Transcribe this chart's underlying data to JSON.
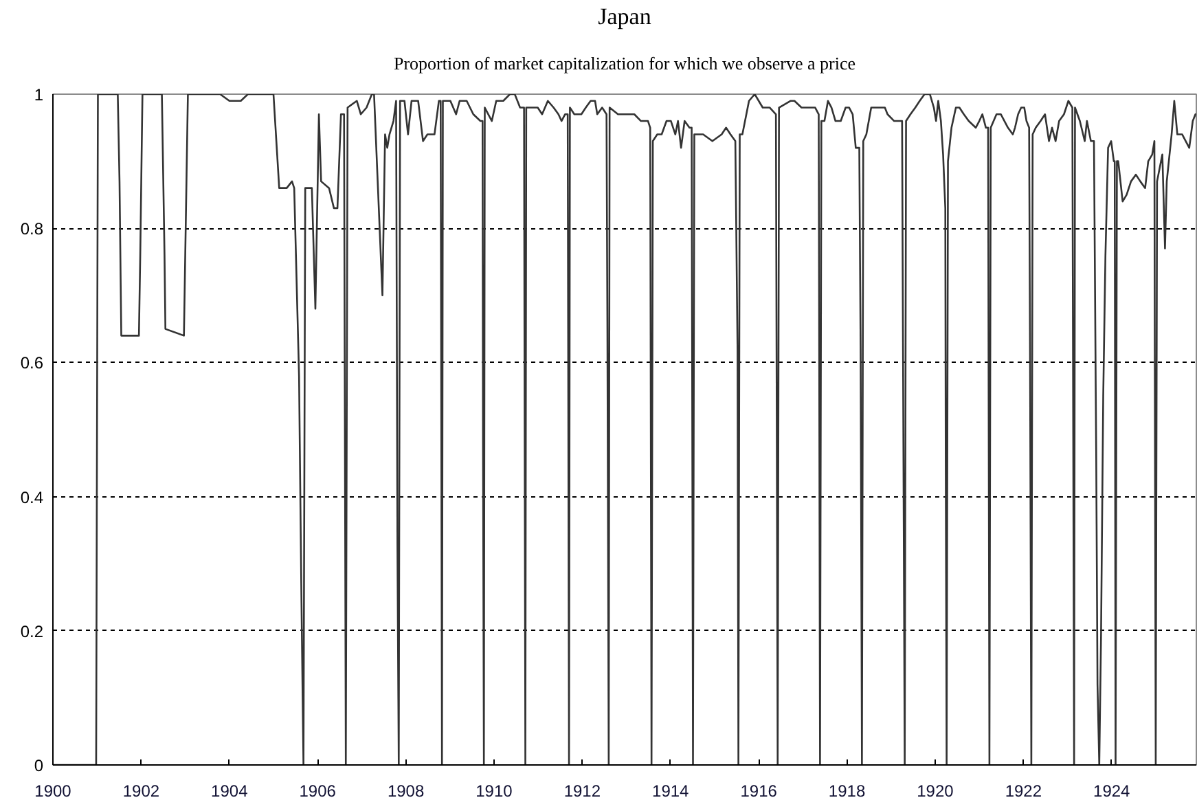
{
  "chart_data": {
    "type": "line",
    "title": "Japan",
    "subtitle": "Proportion of market capitalization for which we observe a price",
    "x": [
      1900.0,
      1900.98,
      1901.0,
      1901.02,
      1901.47,
      1901.51,
      1901.55,
      1901.95,
      1901.98,
      1902.03,
      1902.47,
      1902.53,
      1902.55,
      1902.97,
      1903.0,
      1903.06,
      1903.79,
      1904.0,
      1904.26,
      1904.42,
      1905.0,
      1905.13,
      1905.3,
      1905.42,
      1905.47,
      1905.58,
      1905.63,
      1905.68,
      1905.72,
      1905.87,
      1905.95,
      1906.03,
      1906.08,
      1906.26,
      1906.37,
      1906.45,
      1906.53,
      1906.6,
      1906.64,
      1906.68,
      1906.89,
      1906.98,
      1907.11,
      1907.23,
      1907.28,
      1907.47,
      1907.53,
      1907.58,
      1907.63,
      1907.72,
      1907.78,
      1907.81,
      1907.84,
      1907.87,
      1907.97,
      1908.05,
      1908.13,
      1908.28,
      1908.39,
      1908.49,
      1908.65,
      1908.75,
      1908.79,
      1908.8,
      1908.82,
      1908.84,
      1909.01,
      1909.14,
      1909.22,
      1909.38,
      1909.53,
      1909.69,
      1909.74,
      1909.75,
      1909.77,
      1909.79,
      1909.95,
      1910.05,
      1910.21,
      1910.36,
      1910.47,
      1910.59,
      1910.68,
      1910.69,
      1910.71,
      1910.73,
      1910.89,
      1910.99,
      1911.09,
      1911.22,
      1911.35,
      1911.46,
      1911.53,
      1911.61,
      1911.67,
      1911.68,
      1911.7,
      1911.72,
      1911.82,
      1911.98,
      1912.08,
      1912.19,
      1912.29,
      1912.34,
      1912.45,
      1912.55,
      1912.57,
      1912.6,
      1912.62,
      1912.81,
      1912.97,
      1913.07,
      1913.18,
      1913.33,
      1913.49,
      1913.54,
      1913.55,
      1913.57,
      1913.6,
      1913.7,
      1913.8,
      1913.91,
      1914.01,
      1914.11,
      1914.17,
      1914.24,
      1914.32,
      1914.43,
      1914.48,
      1914.49,
      1914.51,
      1914.54,
      1914.74,
      1914.95,
      1915.16,
      1915.26,
      1915.36,
      1915.47,
      1915.52,
      1915.54,
      1915.57,
      1915.63,
      1915.78,
      1915.91,
      1916.09,
      1916.25,
      1916.39,
      1916.41,
      1916.43,
      1916.46,
      1916.72,
      1916.81,
      1916.97,
      1917.13,
      1917.28,
      1917.36,
      1917.37,
      1917.39,
      1917.42,
      1917.49,
      1917.57,
      1917.65,
      1917.74,
      1917.86,
      1917.97,
      1918.05,
      1918.13,
      1918.2,
      1918.28,
      1918.31,
      1918.34,
      1918.37,
      1918.44,
      1918.55,
      1918.65,
      1918.76,
      1918.86,
      1918.92,
      1919.07,
      1919.18,
      1919.25,
      1919.28,
      1919.31,
      1919.34,
      1919.44,
      1919.55,
      1919.65,
      1919.76,
      1919.88,
      1919.97,
      1920.02,
      1920.07,
      1920.13,
      1920.18,
      1920.23,
      1920.24,
      1920.26,
      1920.29,
      1920.37,
      1920.47,
      1920.55,
      1920.65,
      1920.76,
      1920.92,
      1921.0,
      1921.07,
      1921.15,
      1921.2,
      1921.21,
      1921.23,
      1921.26,
      1921.39,
      1921.49,
      1921.57,
      1921.65,
      1921.76,
      1921.81,
      1921.88,
      1921.95,
      1922.02,
      1922.07,
      1922.13,
      1922.15,
      1922.18,
      1922.21,
      1922.28,
      1922.39,
      1922.49,
      1922.58,
      1922.65,
      1922.73,
      1922.81,
      1922.92,
      1923.02,
      1923.11,
      1923.13,
      1923.15,
      1923.17,
      1923.28,
      1923.39,
      1923.44,
      1923.53,
      1923.6,
      1923.65,
      1923.68,
      1923.72,
      1923.76,
      1923.81,
      1923.86,
      1923.92,
      1923.99,
      1924.05,
      1924.07,
      1924.09,
      1924.12,
      1924.15,
      1924.25,
      1924.34,
      1924.44,
      1924.55,
      1924.65,
      1924.76,
      1924.83,
      1924.92,
      1924.97,
      1924.98,
      1925.0,
      1925.03,
      1925.15,
      1925.21,
      1925.25,
      1925.36,
      1925.42,
      1925.49,
      1925.6,
      1925.76,
      1925.84,
      1925.9
    ],
    "series": [
      {
        "color": "#333333",
        "values": [
          0,
          0,
          0.5,
          1,
          1,
          0.87,
          0.64,
          0.64,
          0.76,
          1,
          1,
          0.76,
          0.65,
          0.64,
          0.76,
          1,
          1,
          0.99,
          0.99,
          1,
          1,
          0.86,
          0.86,
          0.87,
          0.86,
          0.58,
          0.27,
          0,
          0.86,
          0.86,
          0.68,
          0.97,
          0.87,
          0.86,
          0.83,
          0.83,
          0.97,
          0.97,
          0,
          0.98,
          0.99,
          0.97,
          0.98,
          1,
          1,
          0.7,
          0.94,
          0.92,
          0.94,
          0.96,
          0.99,
          0.33,
          0,
          0.99,
          0.99,
          0.94,
          0.99,
          0.99,
          0.93,
          0.94,
          0.94,
          0.99,
          0.99,
          0.66,
          0,
          0.99,
          0.99,
          0.97,
          0.99,
          0.99,
          0.97,
          0.96,
          0.96,
          0.48,
          0,
          0.98,
          0.96,
          0.99,
          0.99,
          1,
          1,
          0.98,
          0.98,
          0.65,
          0,
          0.98,
          0.98,
          0.98,
          0.97,
          0.99,
          0.98,
          0.97,
          0.96,
          0.97,
          0.97,
          0.65,
          0,
          0.98,
          0.97,
          0.97,
          0.98,
          0.99,
          0.99,
          0.97,
          0.98,
          0.97,
          0.65,
          0,
          0.98,
          0.97,
          0.97,
          0.97,
          0.97,
          0.96,
          0.96,
          0.95,
          0.64,
          0,
          0.93,
          0.94,
          0.94,
          0.96,
          0.96,
          0.94,
          0.96,
          0.92,
          0.96,
          0.95,
          0.95,
          0.63,
          0,
          0.94,
          0.94,
          0.93,
          0.94,
          0.95,
          0.94,
          0.93,
          0.62,
          0,
          0.94,
          0.94,
          0.99,
          1,
          0.98,
          0.98,
          0.97,
          0.49,
          0,
          0.98,
          0.99,
          0.99,
          0.98,
          0.98,
          0.98,
          0.97,
          0.66,
          0,
          0.96,
          0.96,
          0.99,
          0.98,
          0.96,
          0.96,
          0.98,
          0.98,
          0.97,
          0.92,
          0.92,
          0.62,
          0,
          0.93,
          0.94,
          0.98,
          0.98,
          0.98,
          0.98,
          0.97,
          0.96,
          0.96,
          0.96,
          0.48,
          0,
          0.96,
          0.97,
          0.98,
          0.99,
          1,
          1,
          0.98,
          0.96,
          0.99,
          0.96,
          0.91,
          0.83,
          0.45,
          0,
          0.9,
          0.95,
          0.98,
          0.98,
          0.97,
          0.96,
          0.95,
          0.96,
          0.97,
          0.95,
          0.95,
          0.63,
          0,
          0.95,
          0.97,
          0.97,
          0.96,
          0.95,
          0.94,
          0.95,
          0.97,
          0.98,
          0.98,
          0.96,
          0.95,
          0.63,
          0,
          0.94,
          0.95,
          0.96,
          0.97,
          0.93,
          0.95,
          0.93,
          0.96,
          0.97,
          0.99,
          0.98,
          0.49,
          0,
          0.98,
          0.96,
          0.93,
          0.96,
          0.93,
          0.93,
          0.47,
          0.12,
          0,
          0.19,
          0.55,
          0.76,
          0.92,
          0.93,
          0.9,
          0.9,
          0,
          0.9,
          0.9,
          0.84,
          0.85,
          0.87,
          0.88,
          0.87,
          0.86,
          0.9,
          0.91,
          0.93,
          0.58,
          0,
          0.87,
          0.91,
          0.77,
          0.87,
          0.94,
          0.99,
          0.94,
          0.94,
          0.92,
          0.96,
          0.97
        ]
      }
    ],
    "xlim": [
      1900,
      1925.92
    ],
    "ylim": [
      0,
      1
    ],
    "xticks": [
      1900,
      1902,
      1904,
      1906,
      1908,
      1910,
      1912,
      1914,
      1916,
      1918,
      1920,
      1922,
      1924
    ],
    "yticks": [
      0,
      0.2,
      0.4,
      0.6,
      0.8,
      1
    ],
    "grid": "y",
    "line_style": "solid"
  }
}
